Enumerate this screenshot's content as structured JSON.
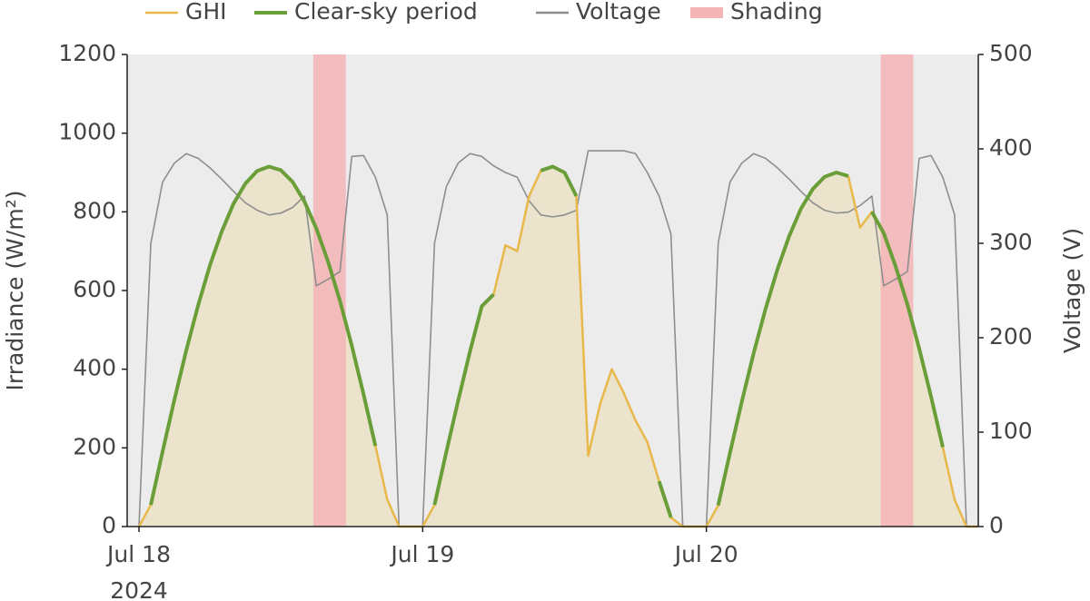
{
  "chart_data": {
    "type": "line",
    "xlim": [
      "2024-07-17 23:00",
      "2024-07-20 23:00"
    ],
    "xticks": [
      {
        "value": "2024-07-18 00:00",
        "label": "Jul 18"
      },
      {
        "value": "2024-07-19 00:00",
        "label": "Jul 19"
      },
      {
        "value": "2024-07-20 00:00",
        "label": "Jul 20"
      }
    ],
    "x_tick_sublabel": "2024",
    "y_label": "Irradiance (W/m²)",
    "y2_label": "Voltage (V)",
    "ylim": [
      0,
      1200
    ],
    "yticks": [
      0,
      200,
      400,
      600,
      800,
      1000,
      1200
    ],
    "y2lim": [
      0,
      500
    ],
    "y2ticks": [
      0,
      100,
      200,
      300,
      400,
      500
    ],
    "grid": false,
    "legend": "top",
    "x": [
      "2024-07-18 00:00",
      "2024-07-18 01:00",
      "2024-07-18 02:00",
      "2024-07-18 03:00",
      "2024-07-18 04:00",
      "2024-07-18 05:00",
      "2024-07-18 06:00",
      "2024-07-18 07:00",
      "2024-07-18 08:00",
      "2024-07-18 09:00",
      "2024-07-18 10:00",
      "2024-07-18 11:00",
      "2024-07-18 12:00",
      "2024-07-18 13:00",
      "2024-07-18 14:00",
      "2024-07-18 15:00",
      "2024-07-18 16:00",
      "2024-07-18 17:00",
      "2024-07-18 18:00",
      "2024-07-18 19:00",
      "2024-07-18 20:00",
      "2024-07-18 21:00",
      "2024-07-18 22:00",
      "2024-07-18 23:00",
      "2024-07-19 00:00",
      "2024-07-19 01:00",
      "2024-07-19 02:00",
      "2024-07-19 03:00",
      "2024-07-19 04:00",
      "2024-07-19 05:00",
      "2024-07-19 06:00",
      "2024-07-19 07:00",
      "2024-07-19 08:00",
      "2024-07-19 09:00",
      "2024-07-19 10:00",
      "2024-07-19 11:00",
      "2024-07-19 12:00",
      "2024-07-19 13:00",
      "2024-07-19 14:00",
      "2024-07-19 15:00",
      "2024-07-19 16:00",
      "2024-07-19 17:00",
      "2024-07-19 18:00",
      "2024-07-19 19:00",
      "2024-07-19 20:00",
      "2024-07-19 21:00",
      "2024-07-19 22:00",
      "2024-07-19 23:00",
      "2024-07-20 00:00",
      "2024-07-20 01:00",
      "2024-07-20 02:00",
      "2024-07-20 03:00",
      "2024-07-20 04:00",
      "2024-07-20 05:00",
      "2024-07-20 06:00",
      "2024-07-20 07:00",
      "2024-07-20 08:00",
      "2024-07-20 09:00",
      "2024-07-20 10:00",
      "2024-07-20 11:00",
      "2024-07-20 12:00",
      "2024-07-20 13:00",
      "2024-07-20 14:00",
      "2024-07-20 15:00",
      "2024-07-20 16:00",
      "2024-07-20 17:00",
      "2024-07-20 18:00",
      "2024-07-20 19:00",
      "2024-07-20 20:00",
      "2024-07-20 21:00",
      "2024-07-20 22:00",
      "2024-07-20 23:00"
    ],
    "series": [
      {
        "name": "GHI",
        "color": "#e8b84a",
        "area_color": "#ebe3cb",
        "width": 2.5,
        "values": [
          0,
          55,
          191,
          323,
          448,
          562,
          664,
          750,
          821,
          872,
          904,
          915,
          906,
          876,
          826,
          758,
          673,
          574,
          460,
          336,
          205,
          69,
          0,
          0,
          0,
          55,
          190,
          320,
          445,
          560,
          590,
          715,
          700,
          840,
          905,
          915,
          900,
          840,
          180,
          310,
          400,
          340,
          270,
          215,
          115,
          23,
          0,
          0,
          0,
          54,
          188,
          318,
          441,
          553,
          653,
          738,
          808,
          858,
          889,
          900,
          891,
          760,
          800,
          746,
          662,
          565,
          453,
          331,
          202,
          68,
          0,
          0
        ]
      },
      {
        "name": "Clear-sky period",
        "color": "#6a9e38",
        "width": 4,
        "values": [
          null,
          55,
          191,
          323,
          448,
          562,
          664,
          750,
          821,
          872,
          904,
          915,
          906,
          876,
          826,
          758,
          673,
          574,
          460,
          336,
          205,
          null,
          null,
          null,
          null,
          55,
          190,
          320,
          445,
          560,
          590,
          null,
          null,
          null,
          905,
          915,
          900,
          840,
          null,
          null,
          null,
          null,
          null,
          null,
          115,
          23,
          null,
          null,
          null,
          54,
          188,
          318,
          441,
          553,
          653,
          738,
          808,
          858,
          889,
          900,
          891,
          null,
          800,
          746,
          662,
          565,
          453,
          331,
          202,
          null,
          null,
          null
        ]
      },
      {
        "name": "Voltage",
        "color": "#8e8e8e",
        "width": 1.6,
        "axis": "y2",
        "values": [
          0,
          300,
          365,
          385,
          395,
          390,
          380,
          368,
          355,
          343,
          335,
          330,
          332,
          338,
          350,
          255,
          262,
          270,
          392,
          393,
          370,
          330,
          0,
          0,
          0,
          300,
          360,
          385,
          395,
          392,
          382,
          375,
          370,
          345,
          330,
          328,
          330,
          335,
          398,
          398,
          398,
          398,
          395,
          375,
          350,
          310,
          0,
          0,
          0,
          300,
          365,
          385,
          395,
          390,
          380,
          368,
          355,
          343,
          335,
          332,
          333,
          340,
          350,
          255,
          262,
          270,
          390,
          393,
          370,
          330,
          0,
          0
        ]
      }
    ],
    "shading": {
      "name": "Shading",
      "color": "#f4b4b6",
      "periods": [
        [
          "2024-07-18 14:45",
          "2024-07-18 17:30"
        ],
        [
          "2024-07-20 14:45",
          "2024-07-20 17:30"
        ]
      ]
    }
  }
}
